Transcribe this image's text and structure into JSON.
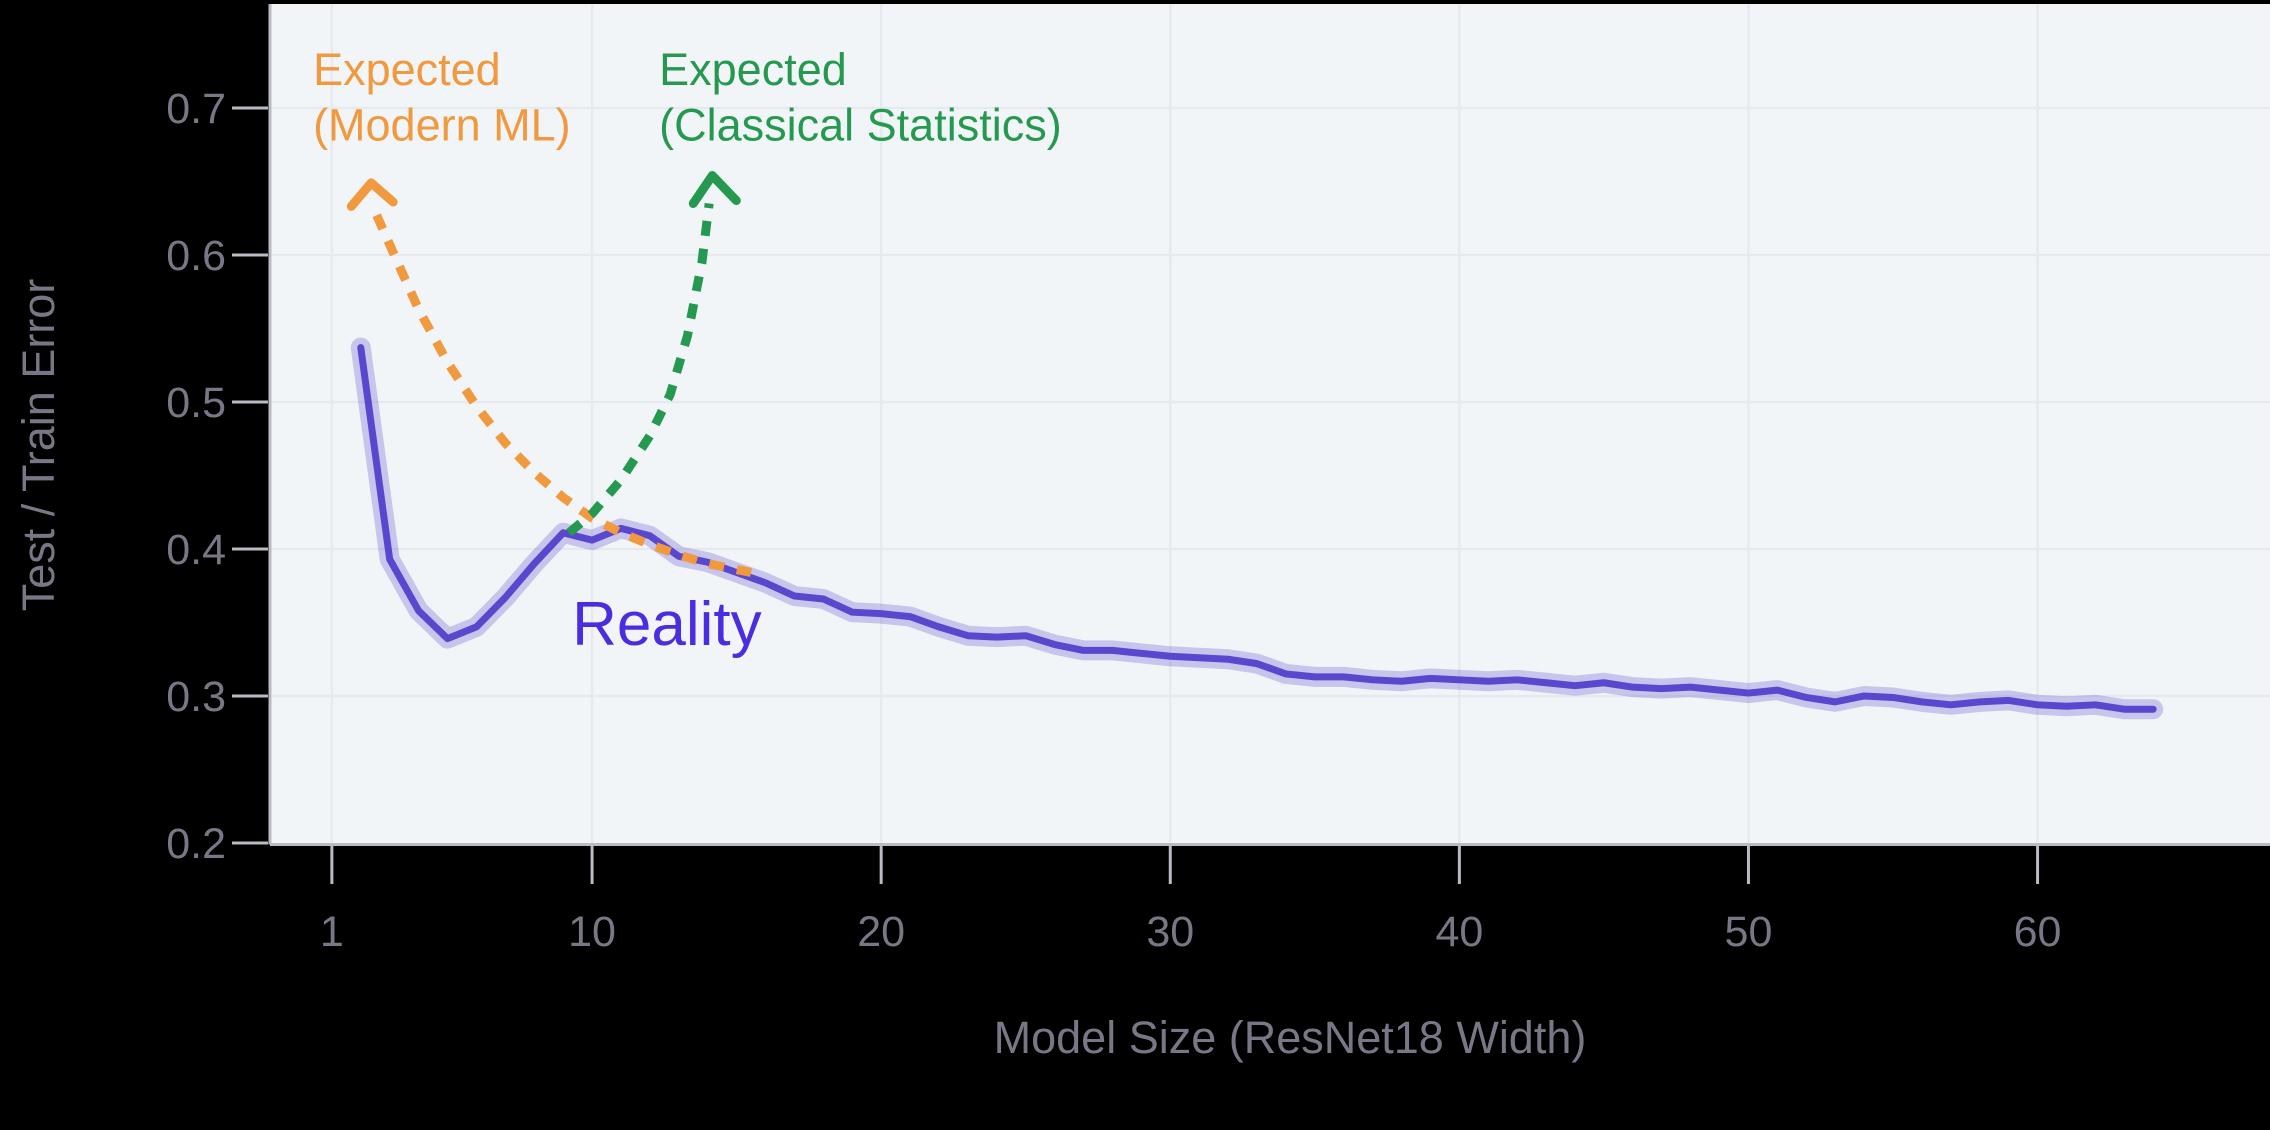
{
  "figure": {
    "background": "#000000",
    "plot_background": "#f2f5f8",
    "grid_color": "#e6e9ed",
    "spine_color": "#b9bcc4",
    "tick_mark_color": "#b9bcc4",
    "axis_text_color": "#7b7685"
  },
  "chart_data": {
    "type": "line",
    "title": "",
    "xlabel": "Model Size (ResNet18 Width)",
    "ylabel": "Test / Train Error",
    "x_ticks": [
      1,
      10,
      20,
      30,
      40,
      50,
      60
    ],
    "y_ticks": [
      0.2,
      0.3,
      0.4,
      0.5,
      0.6,
      0.7
    ],
    "xlim": [
      -1.14,
      68.04
    ],
    "ylim": [
      0.2,
      0.7707
    ],
    "grid": true,
    "legend_position": "none (inline text annotations)",
    "series": [
      {
        "name": "Reality",
        "style": "solid",
        "color": "#5948cd",
        "band_color": "rgba(89,72,205,0.27)",
        "x": [
          2,
          3,
          4,
          5,
          6,
          7,
          8,
          9,
          10,
          11,
          12,
          13,
          14,
          15,
          16,
          17,
          18,
          19,
          20,
          21,
          22,
          23,
          24,
          25,
          26,
          27,
          28,
          29,
          30,
          31,
          32,
          33,
          34,
          35,
          36,
          37,
          38,
          39,
          40,
          41,
          42,
          43,
          44,
          45,
          46,
          47,
          48,
          49,
          50,
          51,
          52,
          53,
          54,
          55,
          56,
          57,
          58,
          59,
          60,
          61,
          62,
          63,
          64
        ],
        "y": [
          0.537,
          0.393,
          0.358,
          0.339,
          0.347,
          0.367,
          0.39,
          0.411,
          0.406,
          0.414,
          0.409,
          0.395,
          0.391,
          0.384,
          0.377,
          0.368,
          0.366,
          0.357,
          0.356,
          0.354,
          0.347,
          0.341,
          0.34,
          0.341,
          0.335,
          0.331,
          0.331,
          0.329,
          0.327,
          0.326,
          0.325,
          0.322,
          0.315,
          0.313,
          0.313,
          0.311,
          0.31,
          0.312,
          0.311,
          0.31,
          0.311,
          0.309,
          0.307,
          0.309,
          0.306,
          0.305,
          0.306,
          0.304,
          0.302,
          0.304,
          0.299,
          0.296,
          0.3,
          0.299,
          0.296,
          0.294,
          0.296,
          0.297,
          0.294,
          0.293,
          0.294,
          0.291,
          0.291
        ]
      },
      {
        "name": "Expected (Modern ML)",
        "style": "dashed",
        "color": "#f0993f",
        "points": [
          [
            2.55,
            0.627
          ],
          [
            3,
            0.607
          ],
          [
            4,
            0.563
          ],
          [
            5,
            0.527
          ],
          [
            6,
            0.497
          ],
          [
            7,
            0.472
          ],
          [
            8,
            0.452
          ],
          [
            9,
            0.435
          ],
          [
            10,
            0.421
          ],
          [
            11,
            0.411
          ],
          [
            12,
            0.403
          ],
          [
            13,
            0.396
          ],
          [
            14,
            0.39
          ],
          [
            15,
            0.386
          ],
          [
            15.5,
            0.384
          ]
        ]
      },
      {
        "name": "Expected (Classical Statistics)",
        "style": "dashed",
        "color": "#25994f",
        "points": [
          [
            9.2,
            0.411
          ],
          [
            10,
            0.424
          ],
          [
            11,
            0.447
          ],
          [
            12,
            0.477
          ],
          [
            12.7,
            0.505
          ],
          [
            13.3,
            0.545
          ],
          [
            13.8,
            0.595
          ],
          [
            14.05,
            0.635
          ]
        ]
      }
    ],
    "annotations": {
      "modern_ml": {
        "line1": "Expected",
        "line2": "(Modern ML)",
        "color": "#f0993f",
        "anchor_x": 0.35,
        "line1_y": 0.7155,
        "line2_y": 0.678,
        "arrow": {
          "tip": [
            2.36,
            0.649
          ],
          "left": [
            1.67,
            0.633
          ],
          "right": [
            3.12,
            0.636
          ]
        }
      },
      "classical": {
        "line1": "Expected",
        "line2": "(Classical Statistics)",
        "color": "#25994f",
        "anchor_x": 12.32,
        "line1_y": 0.7155,
        "line2_y": 0.678,
        "arrow": {
          "tip": [
            14.16,
            0.654
          ],
          "left": [
            13.5,
            0.635
          ],
          "right": [
            14.99,
            0.637
          ]
        }
      },
      "reality": {
        "label": "Reality",
        "color": "#4a2de0",
        "anchor_x": 9.31,
        "anchor_y": 0.3347
      }
    }
  }
}
